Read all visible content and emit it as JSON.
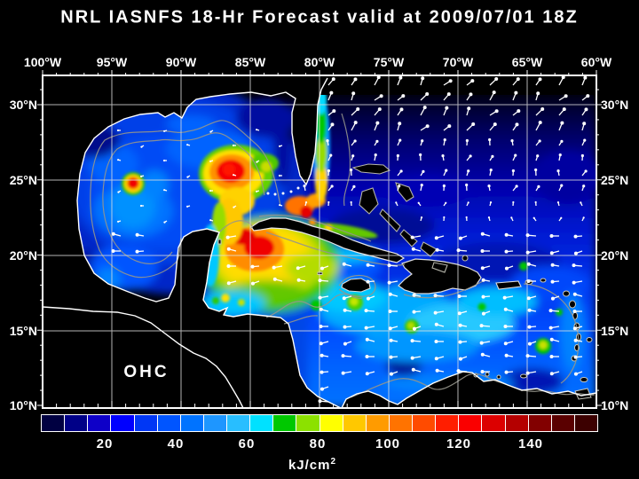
{
  "title": "NRL IASNFS  18-Hr Forecast valid at 2009/07/01 18Z",
  "map": {
    "overlay_label": "OHC",
    "lon_ticks": [
      "100°W",
      "95°W",
      "90°W",
      "85°W",
      "80°W",
      "75°W",
      "70°W",
      "65°W",
      "60°W"
    ],
    "lat_ticks": [
      "30°N",
      "25°N",
      "20°N",
      "15°N",
      "10°N"
    ]
  },
  "colorbar": {
    "tick_labels": [
      "20",
      "40",
      "60",
      "80",
      "100",
      "120",
      "140"
    ],
    "unit_base": "kJ/cm",
    "unit_exponent": "2",
    "segment_colors": [
      "#000041",
      "#000087",
      "#0E00C8",
      "#0000FF",
      "#0037F5",
      "#0055FF",
      "#0073FF",
      "#1E96FF",
      "#28BEFF",
      "#00E1FF",
      "#00C800",
      "#8CE100",
      "#FFFF00",
      "#FFC800",
      "#FF9B00",
      "#FF7300",
      "#FF4B00",
      "#FF1E00",
      "#FA0000",
      "#DC0000",
      "#B40000",
      "#820000",
      "#5A0000",
      "#3C0000"
    ]
  },
  "colors": {
    "background": "#000000",
    "coastline": "#FFFFFF",
    "island_outline": "#C8C8BE",
    "bathymetry_contour": "#96968C",
    "grid_line": "#E0E0E0",
    "vector": "#FFFFFF",
    "frame": "#FFFFFF",
    "text": "#FFFFFF"
  },
  "vectors": {
    "description": "surface current vectors",
    "regions": [
      {
        "name": "atlantic-north",
        "direction": "NE"
      },
      {
        "name": "atlantic-central",
        "direction": "N"
      },
      {
        "name": "caribbean-trades",
        "direction": "W"
      },
      {
        "name": "gulf-interior",
        "direction": "weak W"
      }
    ]
  },
  "chart_data": {
    "type": "heatmap",
    "variable": "OHC (Ocean Heat Content)",
    "unit": "kJ/cm²",
    "model": "NRL IASNFS",
    "forecast_hour": "18-Hr",
    "valid_time": "2009/07/01 18Z",
    "colorbar_ticks": [
      20,
      40,
      60,
      80,
      100,
      120,
      140
    ],
    "lon_axis": [
      "100°W",
      "95°W",
      "90°W",
      "85°W",
      "80°W",
      "75°W",
      "70°W",
      "65°W",
      "60°W"
    ],
    "lat_axis": [
      "30°N",
      "25°N",
      "20°N",
      "15°N",
      "10°N"
    ],
    "high_ohc_features": [
      {
        "feature": "small warm eddy",
        "approx_location": "93.5°W 25°N"
      },
      {
        "feature": "Loop Current warm eddy",
        "approx_location": "86.5°W 25.5°N"
      },
      {
        "feature": "northwest Caribbean warm pool",
        "approx_location": "85°W–81°W, 19°N–22°N"
      },
      {
        "feature": "Gulf Stream / Florida Current warm band",
        "approx_location": "≈79.5°W, 24°N–30.5°N"
      }
    ]
  }
}
